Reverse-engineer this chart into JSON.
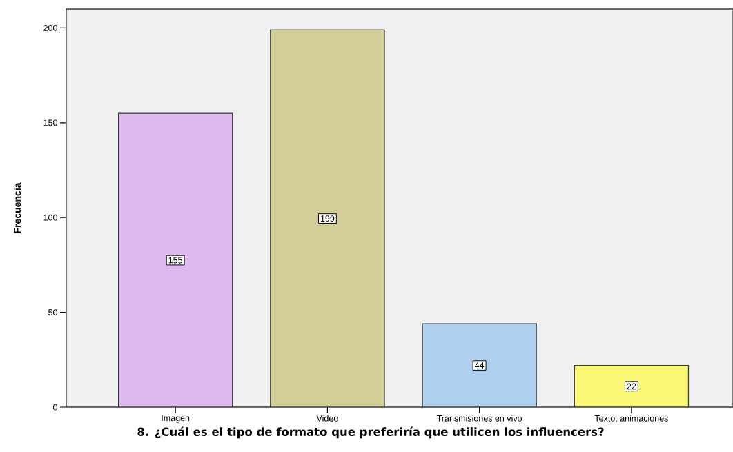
{
  "chart_data": {
    "type": "bar",
    "xlabel": "8. ¿Cuál es el tipo de formato que preferiría que utilicen los influencers?",
    "ylabel": "Frecuencia",
    "categories": [
      "Imagen",
      "Video",
      "Transmisiones en vivo",
      "Texto, animaciones"
    ],
    "values": [
      155,
      199,
      44,
      22
    ],
    "colors": [
      "#dfb8f0",
      "#d3ce97",
      "#aecfee",
      "#faf775"
    ],
    "ylim": [
      0,
      210
    ],
    "yticks": [
      0,
      50,
      100,
      150,
      200
    ],
    "data_labels": true
  }
}
